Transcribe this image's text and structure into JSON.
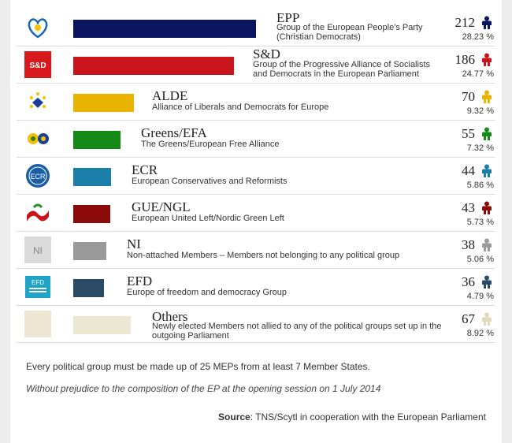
{
  "chart_data": {
    "type": "bar",
    "orientation": "horizontal",
    "xlim": [
      0,
      212
    ],
    "rows": [
      {
        "abbr": "EPP",
        "desc": "Group of the European People's Party (Christian Democrats)",
        "seats": 212,
        "pct": "28.23 %",
        "color": "#0b1460",
        "icon": "epp-logo"
      },
      {
        "abbr": "S&D",
        "desc": "Group of the Progressive Alliance of Socialists and Democrats in the European Parliament",
        "seats": 186,
        "pct": "24.77 %",
        "color": "#c8141a",
        "icon": "sd-logo",
        "logo_text": "S&D"
      },
      {
        "abbr": "ALDE",
        "desc": "Alliance of Liberals and Democrats for Europe",
        "seats": 70,
        "pct": "9.32 %",
        "color": "#e8b400",
        "icon": "alde-logo"
      },
      {
        "abbr": "Greens/EFA",
        "desc": "The Greens/European Free Alliance",
        "seats": 55,
        "pct": "7.32 %",
        "color": "#158a16",
        "icon": "greens-logo"
      },
      {
        "abbr": "ECR",
        "desc": "European Conservatives and Reformists",
        "seats": 44,
        "pct": "5.86 %",
        "color": "#1a7fa8",
        "icon": "ecr-logo",
        "logo_text": "ECR"
      },
      {
        "abbr": "GUE/NGL",
        "desc": "European United Left/Nordic Green Left",
        "seats": 43,
        "pct": "5.73 %",
        "color": "#8b0a0a",
        "icon": "gue-logo"
      },
      {
        "abbr": "NI",
        "desc": "Non-attached Members – Members not belonging to any political group",
        "seats": 38,
        "pct": "5.06 %",
        "color": "#9a9a9a",
        "icon": "ni-logo",
        "logo_text": "NI"
      },
      {
        "abbr": "EFD",
        "desc": "Europe of freedom and democracy Group",
        "seats": 36,
        "pct": "4.79 %",
        "color": "#2a4a66",
        "icon": "efd-logo",
        "logo_text": "EFD"
      },
      {
        "abbr": "Others",
        "desc": "Newly elected Members not allied to any of the political groups set up in the outgoing Parliament",
        "seats": 67,
        "pct": "8.92 %",
        "color": "#ece6d3",
        "icon": "others-logo"
      }
    ]
  },
  "notes": {
    "rule": "Every political group must be made up of 25 MEPs from at least 7 Member States.",
    "disclaimer": "Without prejudice to the composition of the EP at the opening session on 1 July 2014",
    "source_label": "Source",
    "source_text": ": TNS/Scytl in cooperation with the European Parliament"
  }
}
